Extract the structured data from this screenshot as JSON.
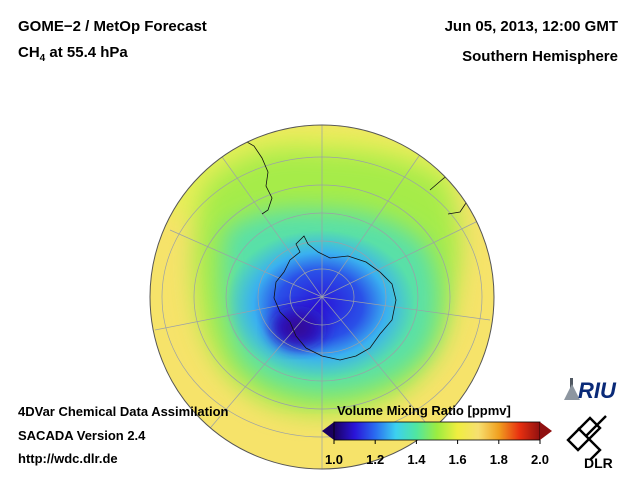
{
  "header": {
    "title": "GOME−2 / MetOp Forecast",
    "species_base": "CH",
    "species_sub": "4",
    "species_rest": " at 55.4 hPa",
    "date": "Jun 05, 2013, 12:00 GMT",
    "hemisphere": "Southern Hemisphere"
  },
  "footer": {
    "line1": "4DVar Chemical Data Assimilation",
    "line2": "SACADA Version 2.4",
    "line3": "http://wdc.dlr.de"
  },
  "colorbar": {
    "title": "Volume Mixing Ratio [ppmv]",
    "min": 1.0,
    "max": 2.0,
    "ticks": [
      "1.0",
      "1.2",
      "1.4",
      "1.6",
      "1.8",
      "2.0"
    ]
  },
  "logos": {
    "riu": "RIU",
    "dlr": "DLR"
  },
  "colors": {
    "background": "#ffffff",
    "colormap": [
      "#1a0060",
      "#2a14d8",
      "#2a6cf0",
      "#3cd0f0",
      "#50e6a0",
      "#9cec40",
      "#f0ee40",
      "#f7e070",
      "#f0a020",
      "#e83010",
      "#901010"
    ]
  }
}
